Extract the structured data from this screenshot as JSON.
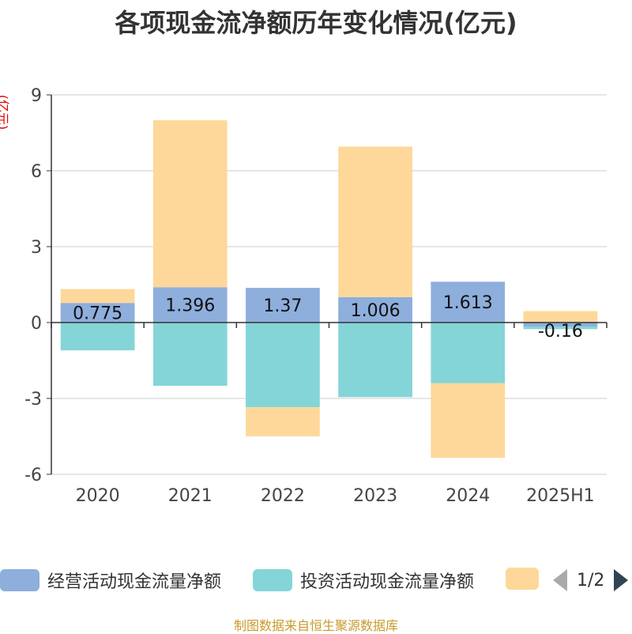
{
  "title": "各项现金流净额历年变化情况(亿元)",
  "unit_label": "(亿元)",
  "source": "制图数据来自恒生聚源数据库",
  "colors": {
    "operating": "#8eaedc",
    "investing": "#84d5d8",
    "financing": "#fdd89a",
    "axis": "#333333",
    "grid": "#cccccc"
  },
  "legend": {
    "items": [
      {
        "label": "经营活动现金流量净额",
        "color": "#8eaedc"
      },
      {
        "label": "投资活动现金流量净额",
        "color": "#84d5d8"
      },
      {
        "label": "",
        "color": "#fdd89a"
      }
    ],
    "page": "1/2"
  },
  "chart_data": {
    "type": "bar",
    "stacked": true,
    "categories": [
      "2020",
      "2021",
      "2022",
      "2023",
      "2024",
      "2025H1"
    ],
    "ylim": [
      -6,
      9
    ],
    "yticks": [
      -6,
      -3,
      0,
      3,
      6,
      9
    ],
    "grid": true,
    "series": [
      {
        "name": "经营活动现金流量净额",
        "values": [
          0.775,
          1.396,
          1.37,
          1.006,
          1.613,
          -0.16
        ],
        "labels": [
          "0.775",
          "1.396",
          "1.37",
          "1.006",
          "1.613",
          "-0.16"
        ]
      },
      {
        "name": "投资活动现金流量净额",
        "values": [
          -1.1,
          -2.5,
          -3.35,
          -2.95,
          -2.4,
          -0.1
        ]
      },
      {
        "name": "",
        "values": [
          0.55,
          6.6,
          -1.15,
          5.95,
          -2.95,
          0.45
        ]
      }
    ]
  }
}
